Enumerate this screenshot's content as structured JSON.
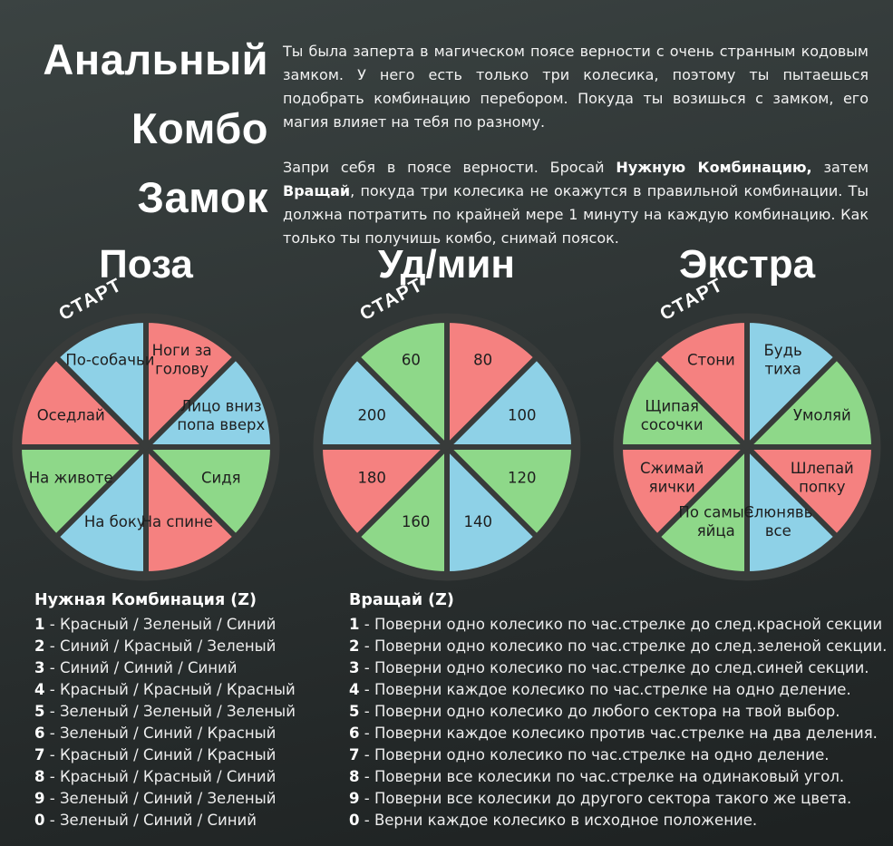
{
  "title": {
    "lines": [
      "Анальный",
      "Комбо",
      "Замок"
    ]
  },
  "intro": {
    "p1": "Ты была заперта в магическом поясе верности с очень странным кодовым замком. У него есть только три колесика, поэтому ты пытаешься подобрать комбинацию перебором. Покуда ты возишься с замком, его магия влияет на тебя по разному.",
    "p2": [
      "Запри себя в поясе верности. Бросай ",
      "Нужную Комбинацию,",
      " затем ",
      "Вращай",
      ", покуда три колесика не окажутся в правильной комбинации. Ты должна потратить по крайней мере 1 минуту на каждую комбинацию. Как только ты получишь комбо, снимай поясок."
    ]
  },
  "start_label": "СТАРТ",
  "colors": {
    "red": "#f58180",
    "green": "#8ed889",
    "blue": "#8ed1e7",
    "stroke": "#383b3a",
    "sector_text": "#1e1e1e",
    "bg_top": "#3b4342",
    "bg_bottom": "#1d2121",
    "text": "#f2f2f2"
  },
  "wheels": [
    {
      "title": "Поза",
      "sectors": [
        {
          "label": "Ноги за\nголову",
          "color": "red"
        },
        {
          "label": "Лицо вниз\nпопа вверх",
          "color": "blue"
        },
        {
          "label": "Сидя",
          "color": "green"
        },
        {
          "label": "На спине",
          "color": "red"
        },
        {
          "label": "На боку",
          "color": "blue"
        },
        {
          "label": "На животе",
          "color": "green"
        },
        {
          "label": "Оседлай",
          "color": "red"
        },
        {
          "label": "По-собачьи",
          "color": "blue"
        }
      ]
    },
    {
      "title": "Уд/мин",
      "sectors": [
        {
          "label": "80",
          "color": "red"
        },
        {
          "label": "100",
          "color": "blue"
        },
        {
          "label": "120",
          "color": "green"
        },
        {
          "label": "140",
          "color": "blue"
        },
        {
          "label": "160",
          "color": "green"
        },
        {
          "label": "180",
          "color": "red"
        },
        {
          "label": "200",
          "color": "blue"
        },
        {
          "label": "60",
          "color": "green"
        }
      ]
    },
    {
      "title": "Экстра",
      "sectors": [
        {
          "label": "Будь\nтиха",
          "color": "blue"
        },
        {
          "label": "Умоляй",
          "color": "green"
        },
        {
          "label": "Шлепай\nпопку",
          "color": "red"
        },
        {
          "label": "Слюнявь\nвсе",
          "color": "blue"
        },
        {
          "label": "По самые\nяйца",
          "color": "green"
        },
        {
          "label": "Сжимай\nяички",
          "color": "red"
        },
        {
          "label": "Щипая\nсосочки",
          "color": "green"
        },
        {
          "label": "Стони",
          "color": "red"
        }
      ]
    }
  ],
  "lists": {
    "separator": " - ",
    "combo": {
      "header": "Нужная Комбинация (Z)",
      "items": [
        {
          "n": "1",
          "t": "Красный / Зеленый / Синий"
        },
        {
          "n": "2",
          "t": "Синий / Красный / Зеленый"
        },
        {
          "n": "3",
          "t": "Синий / Синий / Синий"
        },
        {
          "n": "4",
          "t": "Красный / Красный / Красный"
        },
        {
          "n": "5",
          "t": "Зеленый / Зеленый / Зеленый"
        },
        {
          "n": "6",
          "t": "Зеленый / Синий / Красный"
        },
        {
          "n": "7",
          "t": "Красный / Синий / Красный"
        },
        {
          "n": "8",
          "t": "Красный / Красный / Синий"
        },
        {
          "n": "9",
          "t": "Зеленый / Синий / Зеленый"
        },
        {
          "n": "0",
          "t": "Зеленый / Синий / Синий"
        }
      ]
    },
    "spin": {
      "header": "Вращай (Z)",
      "items": [
        {
          "n": "1",
          "t": "Поверни одно колесико по час.стрелке до след.красной секции"
        },
        {
          "n": "2",
          "t": "Поверни одно колесико по час.стрелке до след.зеленой секции."
        },
        {
          "n": "3",
          "t": "Поверни одно колесико по час.стрелке до след.синей секции."
        },
        {
          "n": "4",
          "t": "Поверни каждое колесико по час.стрелке на одно деление."
        },
        {
          "n": "5",
          "t": "Поверни одно колесико до любого сектора на твой выбор."
        },
        {
          "n": "6",
          "t": "Поверни каждое колесико против час.стрелке на два деления."
        },
        {
          "n": "7",
          "t": "Поверни одно колесико по час.стрелке на одно деление."
        },
        {
          "n": "8",
          "t": "Поверни все колесики по час.стрелке на одинаковый угол."
        },
        {
          "n": "9",
          "t": "Поверни все колесики до другого сектора такого же цвета."
        },
        {
          "n": "0",
          "t": "Верни каждое колесико в исходное положение."
        }
      ]
    }
  }
}
